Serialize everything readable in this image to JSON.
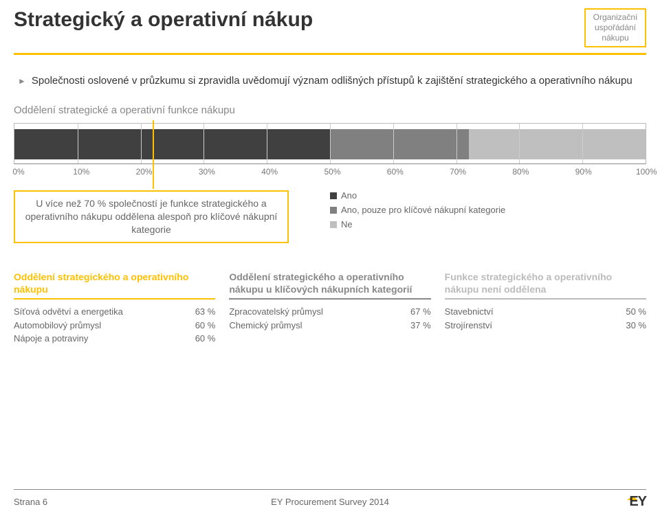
{
  "header": {
    "title": "Strategický a operativní nákup",
    "tag_line1": "Organizační",
    "tag_line2": "uspořádání",
    "tag_line3": "nákupu",
    "tag_border_color": "#ffc000",
    "underline_color": "#ffc000"
  },
  "bullet": {
    "marker": "►",
    "text": "Společnosti oslovené v průzkumu si zpravidla uvědomují význam odlišných přístupů k zajištění strategického a operativního nákupu"
  },
  "chart": {
    "type": "stacked-bar-horizontal",
    "subheading": "Oddělení strategické a operativní funkce nákupu",
    "segments": [
      {
        "label": "Ano",
        "value": 50,
        "color": "#404040"
      },
      {
        "label": "Ano, pouze pro klíčové nákupní kategorie",
        "value": 22,
        "color": "#808080"
      },
      {
        "label": "Ne",
        "value": 28,
        "color": "#bfbfbf"
      }
    ],
    "xticks": [
      "0%",
      "10%",
      "20%",
      "30%",
      "40%",
      "50%",
      "60%",
      "70%",
      "80%",
      "90%",
      "100%"
    ],
    "xlim": [
      0,
      100
    ],
    "grid_color": "#cccccc",
    "border_color": "#bbbbbb",
    "callout": {
      "text": "U více než 70 % společností je funkce strategického a operativního nákupu oddělena alespoň pro klíčové nákupní kategorie",
      "pointer_pct": 22,
      "border_color": "#ffc000"
    },
    "legend_marker_colors": [
      "#404040",
      "#808080",
      "#bfbfbf"
    ]
  },
  "columns": [
    {
      "heading": "Oddělení strategického a operativního nákupu",
      "color": "#ffc000",
      "rows": [
        {
          "label": "Síťová odvětví a energetika",
          "value": "63 %"
        },
        {
          "label": "Automobilový průmysl",
          "value": "60 %"
        },
        {
          "label": "Nápoje a potraviny",
          "value": "60 %"
        }
      ]
    },
    {
      "heading": "Oddělení strategického a operativního nákupu u klíčových nákupních kategorií",
      "color": "#888888",
      "rows": [
        {
          "label": "Zpracovatelský průmysl",
          "value": "67 %"
        },
        {
          "label": "Chemický průmysl",
          "value": "37 %"
        }
      ]
    },
    {
      "heading": "Funkce strategického a operativního nákupu není oddělena",
      "color": "#bbbbbb",
      "rows": [
        {
          "label": "Stavebnictví",
          "value": "50 %"
        },
        {
          "label": "Strojírenství",
          "value": "30 %"
        }
      ]
    }
  ],
  "footer": {
    "page": "Strana 6",
    "center": "EY Procurement Survey 2014",
    "logo": "EY"
  }
}
